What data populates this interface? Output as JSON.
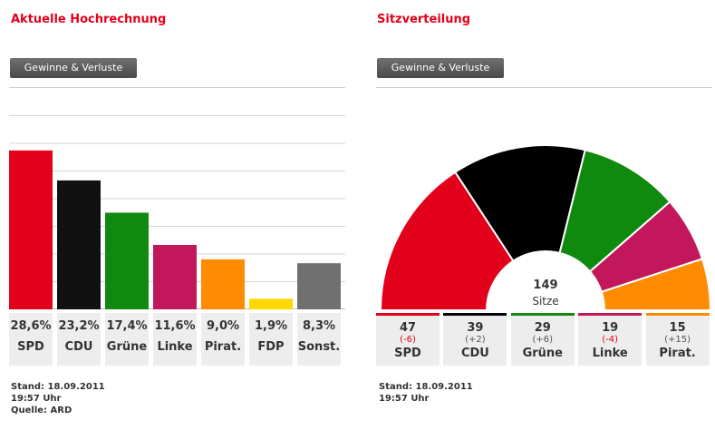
{
  "left": {
    "title": "Aktuelle Hochrechnung",
    "button_label": "Gewinne & Verluste",
    "footer": {
      "stand": "Stand: 18.09.2011",
      "time": "19:57 Uhr",
      "source": "Quelle: ARD"
    }
  },
  "right": {
    "title": "Sitzverteilung",
    "button_label": "Gewinne & Verluste",
    "total_seats": "149",
    "seats_label": "Sitze",
    "footer": {
      "stand": "Stand: 18.09.2011",
      "time": "19:57 Uhr"
    }
  },
  "chart_data": [
    {
      "type": "bar",
      "title": "Aktuelle Hochrechnung",
      "categories": [
        "SPD",
        "CDU",
        "Grüne",
        "Linke",
        "Pirat.",
        "FDP",
        "Sonst."
      ],
      "values": [
        28.6,
        23.2,
        17.4,
        11.6,
        9.0,
        1.9,
        8.3
      ],
      "value_labels": [
        "28,6%",
        "23,2%",
        "17,4%",
        "11,6%",
        "9,0%",
        "1,9%",
        "8,3%"
      ],
      "colors": [
        "#e2001a",
        "#111111",
        "#0f8a0f",
        "#c2185b",
        "#ff8c00",
        "#ffd700",
        "#707070"
      ],
      "ylim": [
        0,
        40
      ],
      "grid": true
    },
    {
      "type": "pie",
      "subtype": "semicircle",
      "title": "Sitzverteilung",
      "categories": [
        "SPD",
        "CDU",
        "Grüne",
        "Linke",
        "Pirat."
      ],
      "values": [
        47,
        39,
        29,
        19,
        15
      ],
      "changes": [
        "(-6)",
        "(+2)",
        "(+6)",
        "(-4)",
        "(+15)"
      ],
      "colors": [
        "#e2001a",
        "#000000",
        "#0f8a0f",
        "#c2185b",
        "#ff8c00"
      ]
    }
  ]
}
